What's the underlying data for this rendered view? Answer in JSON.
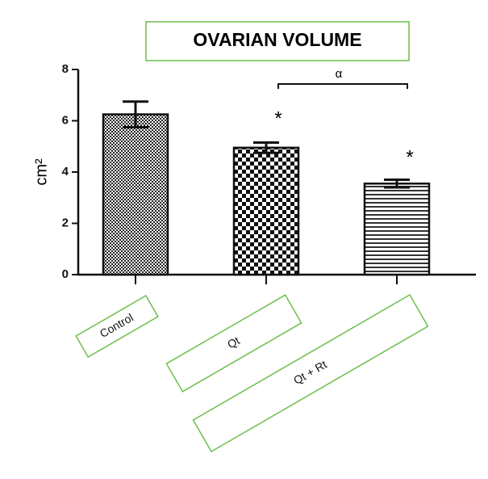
{
  "chart_data": {
    "type": "bar",
    "title": "OVARIAN VOLUME",
    "y_label": "cm²",
    "categories": [
      "Control",
      "Qt",
      "Qt + Rt"
    ],
    "values": [
      6.25,
      4.95,
      3.55
    ],
    "errors": [
      0.5,
      0.2,
      0.15
    ],
    "ylim": [
      0,
      8
    ],
    "yticks": [
      0,
      2,
      4,
      6,
      8
    ],
    "annotations": [
      "*",
      "*",
      "α"
    ]
  }
}
